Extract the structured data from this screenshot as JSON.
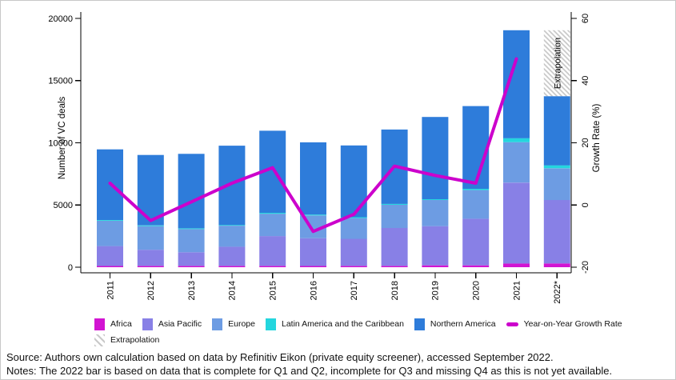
{
  "chart_data": {
    "type": "bar",
    "variant": "stacked-column-with-secondary-line",
    "title": "",
    "categories": [
      "2011",
      "2012",
      "2013",
      "2014",
      "2015",
      "2016",
      "2017",
      "2018",
      "2019",
      "2020",
      "2021",
      "2022*"
    ],
    "stack_series": [
      {
        "name": "Africa",
        "color": "#D214D2",
        "values": [
          100,
          100,
          100,
          100,
          100,
          100,
          100,
          100,
          150,
          150,
          300,
          300
        ]
      },
      {
        "name": "Asia Pacific",
        "color": "#8880E6",
        "values": [
          1600,
          1300,
          1100,
          1550,
          2400,
          2230,
          2180,
          3050,
          3150,
          3750,
          6500,
          5100
        ]
      },
      {
        "name": "Europe",
        "color": "#6D9CE3",
        "values": [
          2030,
          1900,
          1860,
          1690,
          1800,
          1830,
          1670,
          1870,
          2100,
          2300,
          3250,
          2550
        ]
      },
      {
        "name": "Latin America and the Caribbean",
        "color": "#24D6DE",
        "values": [
          60,
          60,
          60,
          60,
          70,
          70,
          70,
          70,
          70,
          100,
          320,
          240
        ]
      },
      {
        "name": "Northern America",
        "color": "#2E7CDA",
        "values": [
          5680,
          5660,
          5990,
          6370,
          6600,
          5810,
          5770,
          5980,
          6610,
          6650,
          8680,
          5560
        ]
      }
    ],
    "totals": [
      9470,
      9020,
      9110,
      9770,
      10970,
      10040,
      9790,
      11070,
      12080,
      12950,
      19050,
      13750
    ],
    "extrapolation": {
      "label": "Extrapolation",
      "category": "2022*",
      "value": 5300,
      "pattern_color": "#C9C9C9"
    },
    "line_series": {
      "name": "Year-on-Year Growth Rate",
      "color": "#CC00CC",
      "axis": "right",
      "values": [
        7,
        -5,
        1,
        7,
        12,
        -8.5,
        -3,
        12.5,
        9.5,
        7,
        47,
        null
      ]
    },
    "left_axis": {
      "label": "Number of VC deals",
      "ticks": [
        0,
        5000,
        10000,
        15000,
        20000
      ],
      "range": [
        0,
        20000
      ]
    },
    "right_axis": {
      "label": "Growth Rate (%)",
      "ticks": [
        -20,
        0,
        20,
        40,
        60
      ],
      "range": [
        -20,
        60
      ]
    },
    "grid": false,
    "legend_position": "bottom"
  },
  "legend": {
    "rows": [
      [
        {
          "label": "Africa",
          "swatch": "square",
          "color": "#D214D2"
        },
        {
          "label": "Asia Pacific",
          "swatch": "square",
          "color": "#8880E6"
        },
        {
          "label": "Europe",
          "swatch": "square",
          "color": "#6D9CE3"
        },
        {
          "label": "Latin America and the Caribbean",
          "swatch": "square",
          "color": "#24D6DE"
        },
        {
          "label": "Northern America",
          "swatch": "square",
          "color": "#2E7CDA"
        },
        {
          "label": "Year-on-Year Growth Rate",
          "swatch": "line",
          "color": "#CC00CC"
        }
      ],
      [
        {
          "label": "Extrapolation",
          "swatch": "hatch",
          "color": "#C9C9C9"
        }
      ]
    ]
  },
  "footer": {
    "source": "Source: Authors own calculation based on data by Refinitiv Eikon (private equity screener), accessed September 2022.",
    "notes": "Notes: The 2022 bar is based on data that is complete for Q1 and Q2, incomplete for Q3 and missing Q4 as this is not yet available."
  }
}
